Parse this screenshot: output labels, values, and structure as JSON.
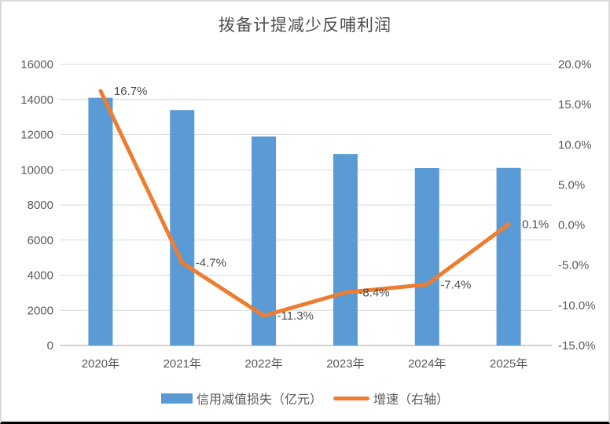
{
  "window": {
    "background": "#ffffff",
    "frame_border_color": "#d9d9d9",
    "bottom_border_color": "#000000"
  },
  "chart_data": {
    "type": "bar+line",
    "title": "拨备计提减少反哺利润",
    "categories": [
      "2020年",
      "2021年",
      "2022年",
      "2023年",
      "2024年",
      "2025年"
    ],
    "series": [
      {
        "name": "信用减值损失（亿元）",
        "type": "bar",
        "axis": "left",
        "values": [
          14100,
          13400,
          11900,
          10900,
          10100,
          10110
        ],
        "color": "#5B9BD5"
      },
      {
        "name": "增速（右轴）",
        "type": "line",
        "axis": "right",
        "values": [
          16.7,
          -4.7,
          -11.3,
          -8.4,
          -7.4,
          0.1
        ],
        "point_labels": [
          "16.7%",
          "-4.7%",
          "-11.3%",
          "-8.4%",
          "-7.4%",
          "0.1%"
        ],
        "color": "#ED7D31"
      }
    ],
    "left_axis": {
      "min": 0,
      "max": 16000,
      "step": 2000,
      "ticks": [
        "16000",
        "14000",
        "12000",
        "10000",
        "8000",
        "6000",
        "4000",
        "2000",
        "0"
      ]
    },
    "right_axis": {
      "min": -15,
      "max": 20,
      "step": 5,
      "ticks": [
        "20.0%",
        "15.0%",
        "10.0%",
        "5.0%",
        "0.0%",
        "-5.0%",
        "-10.0%",
        "-15.0%"
      ]
    },
    "grid": true,
    "gridline_color": "#d9d9d9",
    "axis_line_color": "#bfbfbf",
    "legend_position": "bottom"
  }
}
